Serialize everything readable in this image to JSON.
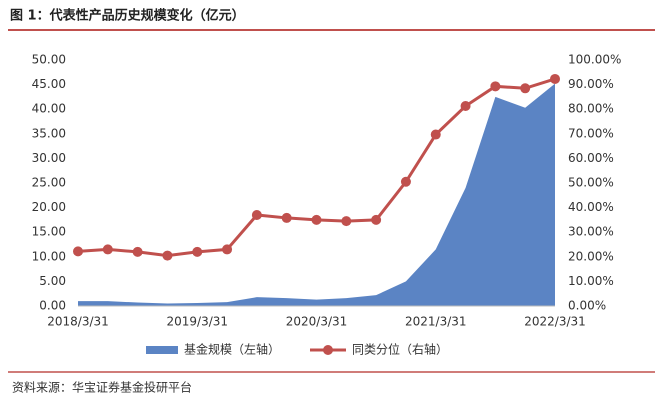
{
  "chart_data": {
    "type": "area-line",
    "title": "图 1：代表性产品历史规模变化（亿元）",
    "source": "资料来源：华宝证券基金投研平台",
    "categories": [
      "2018/3/31",
      null,
      null,
      null,
      "2019/3/31",
      null,
      null,
      null,
      "2020/3/31",
      null,
      null,
      null,
      "2021/3/31",
      null,
      null,
      null,
      "2022/3/31"
    ],
    "series": [
      {
        "name": "基金规模（左轴）",
        "color": "#5b84c4",
        "type": "area",
        "values": [
          1.0,
          1.0,
          0.7,
          0.5,
          0.6,
          0.8,
          1.8,
          1.6,
          1.3,
          1.6,
          2.2,
          5.0,
          11.5,
          24.0,
          42.5,
          40.3,
          45.2
        ]
      },
      {
        "name": "同类分位（右轴）",
        "color": "#c0504d",
        "type": "line",
        "axis": "y2",
        "values": [
          22.2,
          23.0,
          22.0,
          20.5,
          22.0,
          23.0,
          37.0,
          35.8,
          35.0,
          34.5,
          35.0,
          50.5,
          69.7,
          81.3,
          89.3,
          88.5,
          92.3
        ]
      }
    ],
    "ylim": [
      0,
      50
    ],
    "yticks": [
      {
        "value": 0,
        "label": "0.00"
      },
      {
        "value": 5,
        "label": "5.00"
      },
      {
        "value": 10,
        "label": "10.00"
      },
      {
        "value": 15,
        "label": "15.00"
      },
      {
        "value": 20,
        "label": "20.00"
      },
      {
        "value": 25,
        "label": "25.00"
      },
      {
        "value": 30,
        "label": "30.00"
      },
      {
        "value": 35,
        "label": "35.00"
      },
      {
        "value": 40,
        "label": "40.00"
      },
      {
        "value": 45,
        "label": "45.00"
      },
      {
        "value": 50,
        "label": "50.00"
      }
    ],
    "y2lim": [
      0,
      100
    ],
    "y2ticks": [
      {
        "value": 0,
        "label": "0.00%"
      },
      {
        "value": 10,
        "label": "10.00%"
      },
      {
        "value": 20,
        "label": "20.00%"
      },
      {
        "value": 30,
        "label": "30.00%"
      },
      {
        "value": 40,
        "label": "40.00%"
      },
      {
        "value": 50,
        "label": "50.00%"
      },
      {
        "value": 60,
        "label": "60.00%"
      },
      {
        "value": 70,
        "label": "70.00%"
      },
      {
        "value": 80,
        "label": "80.00%"
      },
      {
        "value": 90,
        "label": "90.00%"
      },
      {
        "value": 100,
        "label": "100.00%"
      }
    ],
    "grid": false
  }
}
